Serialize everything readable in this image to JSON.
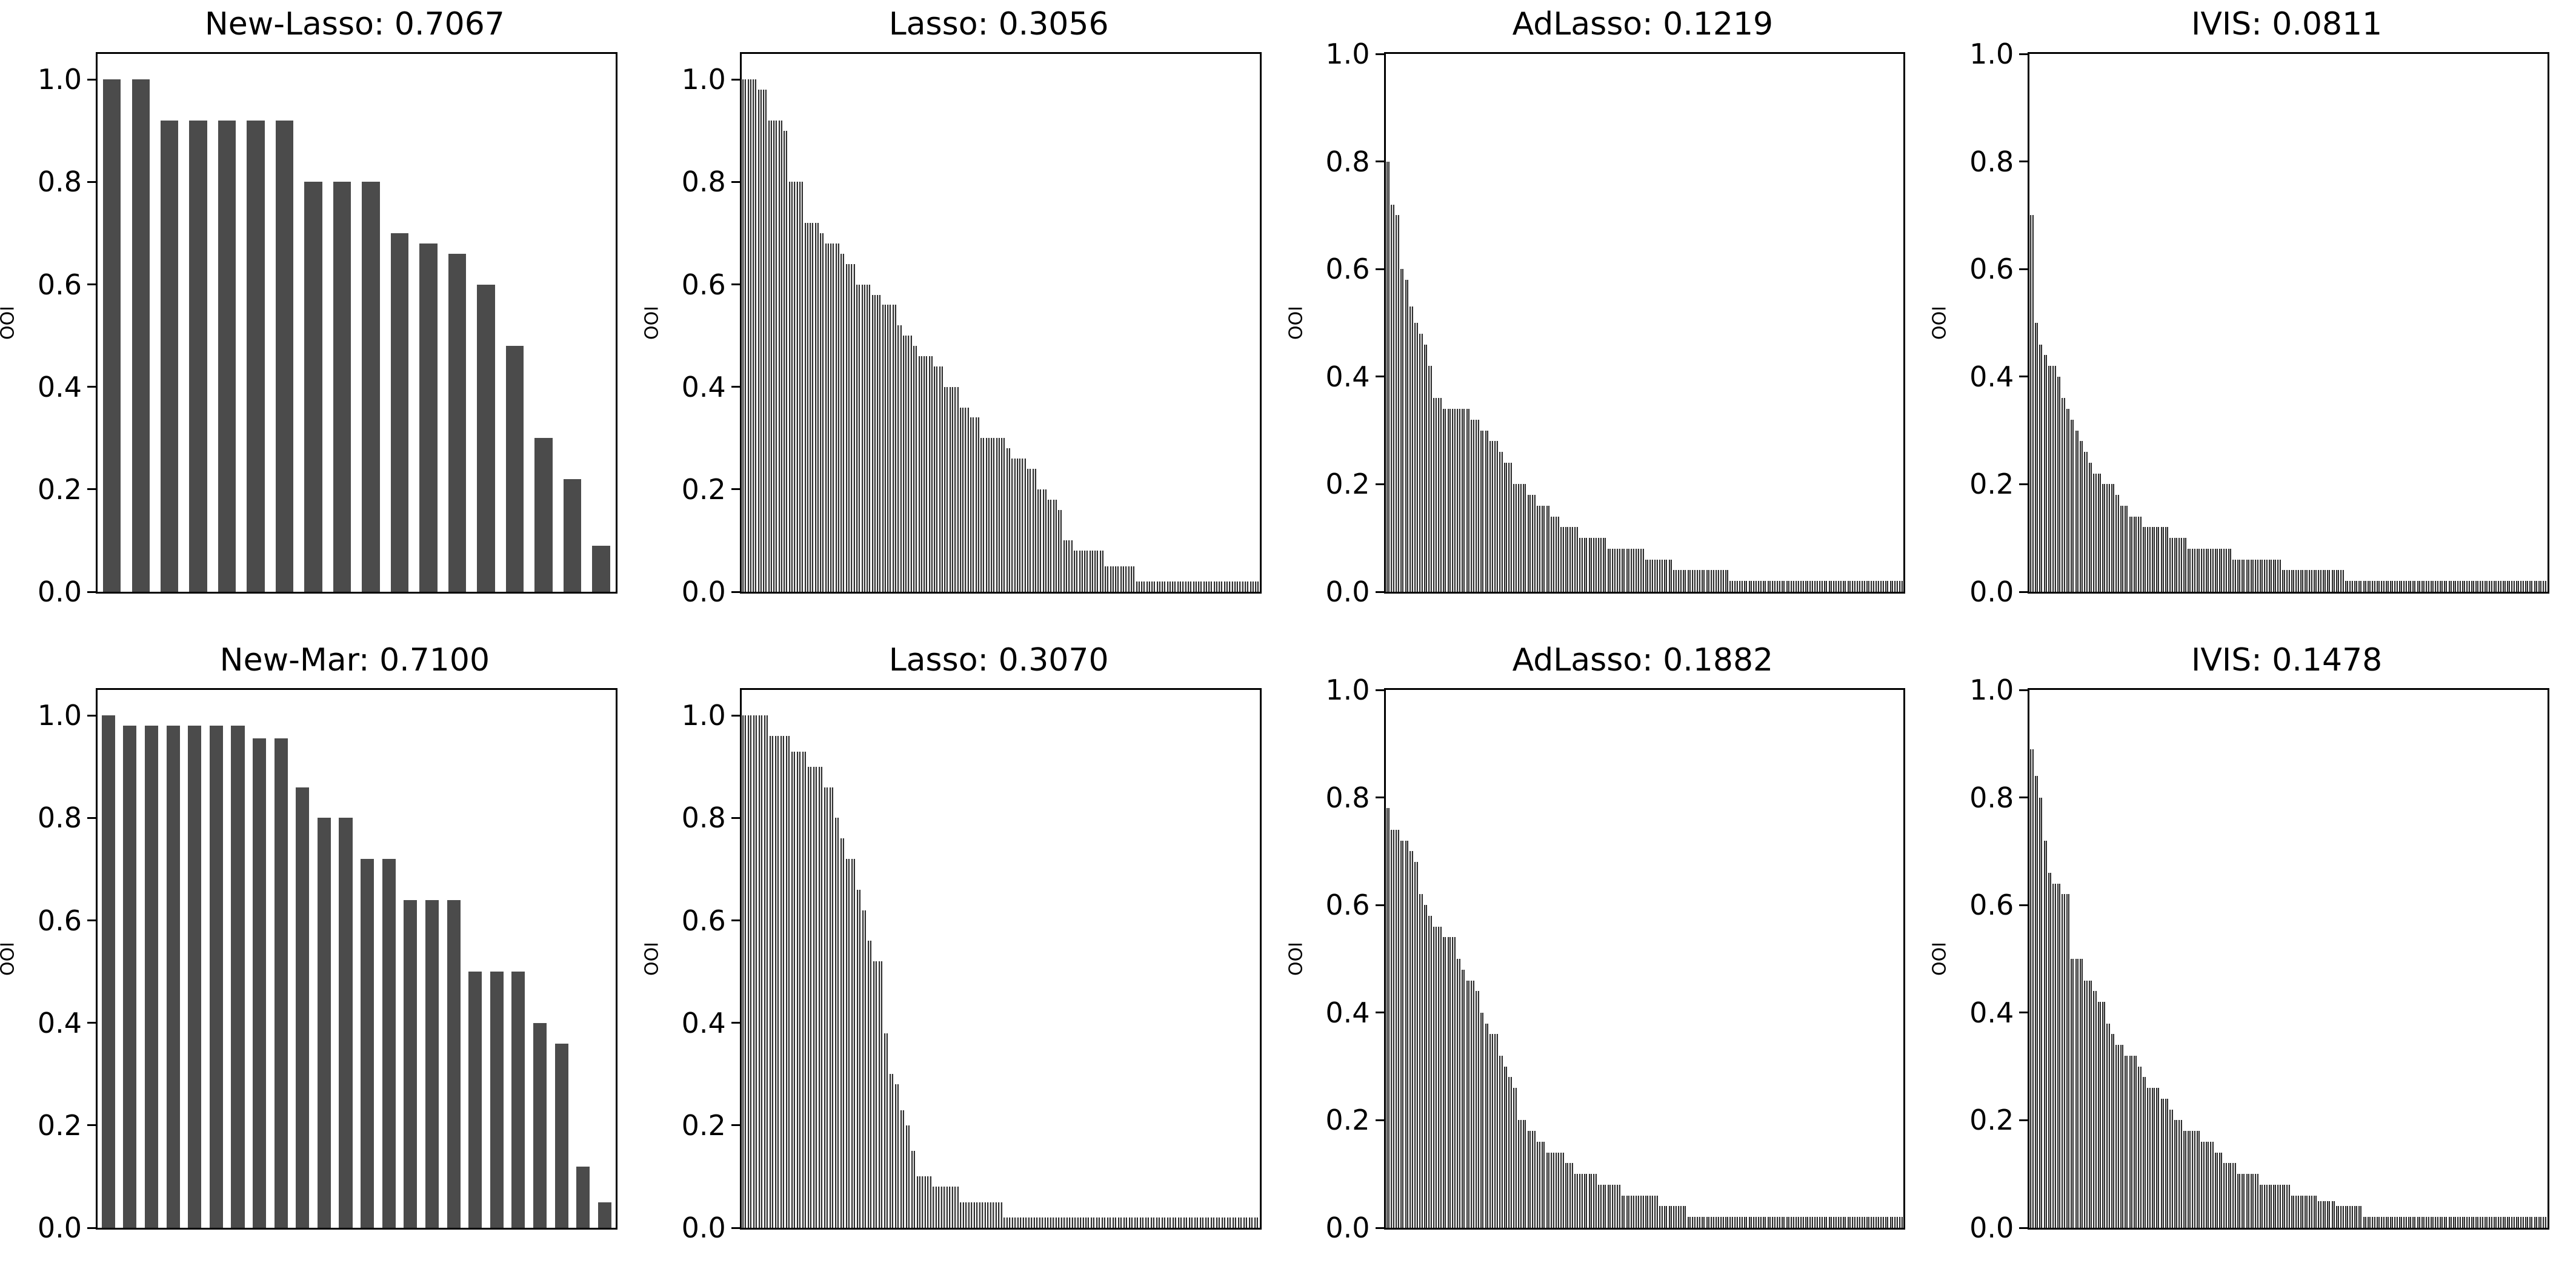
{
  "figure": {
    "background": "#ffffff",
    "axis_color": "#000000",
    "wide_bar_color": "#4b4b4b",
    "thin_bar_fill": "#dcdcdc",
    "thin_bar_edge": "#2d2d2d"
  },
  "axis": {
    "yticks": [
      0.0,
      0.2,
      0.4,
      0.6,
      0.8,
      1.0
    ],
    "ytick_labels": [
      "0.0",
      "0.2",
      "0.4",
      "0.6",
      "0.8",
      "1.0"
    ]
  },
  "chart_data": [
    {
      "type": "bar",
      "title": "New-Lasso: 0.7067",
      "xlabel": "",
      "ylabel": "OOI",
      "ylim": [
        0,
        1.05
      ],
      "bar_style": "wide",
      "legend": "none",
      "grid": false,
      "values": [
        1.0,
        1.0,
        0.92,
        0.92,
        0.92,
        0.92,
        0.92,
        0.8,
        0.8,
        0.8,
        0.7,
        0.68,
        0.66,
        0.6,
        0.48,
        0.3,
        0.22,
        0.09
      ]
    },
    {
      "type": "bar",
      "title": "Lasso: 0.3056",
      "xlabel": "",
      "ylabel": "OOI",
      "ylim": [
        0,
        1.05
      ],
      "bar_style": "thin",
      "legend": "none",
      "grid": false,
      "values": [
        1.0,
        1.0,
        1.0,
        0.98,
        0.98,
        0.92,
        0.92,
        0.92,
        0.9,
        0.8,
        0.8,
        0.8,
        0.72,
        0.72,
        0.72,
        0.7,
        0.68,
        0.68,
        0.68,
        0.66,
        0.64,
        0.64,
        0.6,
        0.6,
        0.6,
        0.58,
        0.58,
        0.56,
        0.56,
        0.56,
        0.52,
        0.5,
        0.5,
        0.48,
        0.46,
        0.46,
        0.46,
        0.44,
        0.44,
        0.4,
        0.4,
        0.4,
        0.36,
        0.36,
        0.34,
        0.34,
        0.3,
        0.3,
        0.3,
        0.3,
        0.3,
        0.28,
        0.26,
        0.26,
        0.26,
        0.24,
        0.24,
        0.2,
        0.2,
        0.18,
        0.18,
        0.16,
        0.1,
        0.1,
        0.08,
        0.08,
        0.08,
        0.08,
        0.08,
        0.08,
        0.05,
        0.05,
        0.05,
        0.05,
        0.05,
        0.05,
        0.02,
        0.02,
        0.02,
        0.02,
        0.02,
        0.02,
        0.02,
        0.02,
        0.02,
        0.02,
        0.02,
        0.02,
        0.02,
        0.02,
        0.02,
        0.02,
        0.02,
        0.02,
        0.02,
        0.02,
        0.02,
        0.02,
        0.02,
        0.02
      ]
    },
    {
      "type": "bar",
      "title": "AdLasso: 0.1219",
      "xlabel": "",
      "ylabel": "OOI",
      "ylim": [
        0,
        1.0
      ],
      "bar_style": "thin",
      "legend": "none",
      "grid": false,
      "values": [
        0.8,
        0.72,
        0.7,
        0.6,
        0.58,
        0.53,
        0.5,
        0.48,
        0.46,
        0.42,
        0.36,
        0.36,
        0.34,
        0.34,
        0.34,
        0.34,
        0.34,
        0.34,
        0.32,
        0.32,
        0.3,
        0.3,
        0.28,
        0.28,
        0.26,
        0.24,
        0.24,
        0.2,
        0.2,
        0.2,
        0.18,
        0.18,
        0.16,
        0.16,
        0.16,
        0.14,
        0.14,
        0.12,
        0.12,
        0.12,
        0.12,
        0.1,
        0.1,
        0.1,
        0.1,
        0.1,
        0.1,
        0.08,
        0.08,
        0.08,
        0.08,
        0.08,
        0.08,
        0.08,
        0.08,
        0.06,
        0.06,
        0.06,
        0.06,
        0.06,
        0.06,
        0.04,
        0.04,
        0.04,
        0.04,
        0.04,
        0.04,
        0.04,
        0.04,
        0.04,
        0.04,
        0.04,
        0.04,
        0.02,
        0.02,
        0.02,
        0.02,
        0.02,
        0.02,
        0.02,
        0.02,
        0.02,
        0.02,
        0.02,
        0.02,
        0.02,
        0.02,
        0.02,
        0.02,
        0.02,
        0.02,
        0.02,
        0.02,
        0.02,
        0.02,
        0.02,
        0.02,
        0.02,
        0.02,
        0.02,
        0.02,
        0.02,
        0.02,
        0.02,
        0.02,
        0.02,
        0.02,
        0.02,
        0.02,
        0.02
      ]
    },
    {
      "type": "bar",
      "title": "IVIS: 0.0811",
      "xlabel": "",
      "ylabel": "OOI",
      "ylim": [
        0,
        1.0
      ],
      "bar_style": "thin",
      "legend": "none",
      "grid": false,
      "values": [
        0.7,
        0.5,
        0.46,
        0.44,
        0.42,
        0.42,
        0.4,
        0.36,
        0.34,
        0.32,
        0.3,
        0.28,
        0.26,
        0.24,
        0.22,
        0.22,
        0.2,
        0.2,
        0.2,
        0.18,
        0.16,
        0.16,
        0.14,
        0.14,
        0.14,
        0.12,
        0.12,
        0.12,
        0.12,
        0.12,
        0.12,
        0.1,
        0.1,
        0.1,
        0.1,
        0.08,
        0.08,
        0.08,
        0.08,
        0.08,
        0.08,
        0.08,
        0.08,
        0.08,
        0.08,
        0.06,
        0.06,
        0.06,
        0.06,
        0.06,
        0.06,
        0.06,
        0.06,
        0.06,
        0.06,
        0.06,
        0.04,
        0.04,
        0.04,
        0.04,
        0.04,
        0.04,
        0.04,
        0.04,
        0.04,
        0.04,
        0.04,
        0.04,
        0.04,
        0.04,
        0.02,
        0.02,
        0.02,
        0.02,
        0.02,
        0.02,
        0.02,
        0.02,
        0.02,
        0.02,
        0.02,
        0.02,
        0.02,
        0.02,
        0.02,
        0.02,
        0.02,
        0.02,
        0.02,
        0.02,
        0.02,
        0.02,
        0.02,
        0.02,
        0.02,
        0.02,
        0.02,
        0.02,
        0.02,
        0.02,
        0.02,
        0.02,
        0.02,
        0.02,
        0.02,
        0.02,
        0.02,
        0.02,
        0.02,
        0.02,
        0.02,
        0.02,
        0.02,
        0.02,
        0.02
      ]
    },
    {
      "type": "bar",
      "title": "New-Mar: 0.7100",
      "xlabel": "",
      "ylabel": "OOI",
      "ylim": [
        0,
        1.05
      ],
      "bar_style": "wide",
      "legend": "none",
      "grid": false,
      "values": [
        1.0,
        0.98,
        0.98,
        0.98,
        0.98,
        0.98,
        0.98,
        0.955,
        0.955,
        0.86,
        0.8,
        0.8,
        0.72,
        0.72,
        0.64,
        0.64,
        0.64,
        0.5,
        0.5,
        0.5,
        0.4,
        0.36,
        0.12,
        0.05
      ]
    },
    {
      "type": "bar",
      "title": "Lasso: 0.3070",
      "xlabel": "",
      "ylabel": "OOI",
      "ylim": [
        0,
        1.05
      ],
      "bar_style": "thin",
      "legend": "none",
      "grid": false,
      "values": [
        1.0,
        1.0,
        1.0,
        1.0,
        1.0,
        0.96,
        0.96,
        0.96,
        0.96,
        0.93,
        0.93,
        0.93,
        0.9,
        0.9,
        0.9,
        0.86,
        0.86,
        0.8,
        0.76,
        0.72,
        0.72,
        0.66,
        0.62,
        0.56,
        0.52,
        0.52,
        0.38,
        0.3,
        0.28,
        0.23,
        0.2,
        0.15,
        0.1,
        0.1,
        0.1,
        0.08,
        0.08,
        0.08,
        0.08,
        0.08,
        0.05,
        0.05,
        0.05,
        0.05,
        0.05,
        0.05,
        0.05,
        0.05,
        0.02,
        0.02,
        0.02,
        0.02,
        0.02,
        0.02,
        0.02,
        0.02,
        0.02,
        0.02,
        0.02,
        0.02,
        0.02,
        0.02,
        0.02,
        0.02,
        0.02,
        0.02,
        0.02,
        0.02,
        0.02,
        0.02,
        0.02,
        0.02,
        0.02,
        0.02,
        0.02,
        0.02,
        0.02,
        0.02,
        0.02,
        0.02,
        0.02,
        0.02,
        0.02,
        0.02,
        0.02,
        0.02,
        0.02,
        0.02,
        0.02,
        0.02,
        0.02,
        0.02,
        0.02,
        0.02,
        0.02
      ]
    },
    {
      "type": "bar",
      "title": "AdLasso: 0.1882",
      "xlabel": "",
      "ylabel": "OOI",
      "ylim": [
        0,
        1.0
      ],
      "bar_style": "thin",
      "legend": "none",
      "grid": false,
      "values": [
        0.78,
        0.74,
        0.74,
        0.72,
        0.72,
        0.7,
        0.68,
        0.62,
        0.6,
        0.58,
        0.56,
        0.56,
        0.54,
        0.54,
        0.54,
        0.5,
        0.48,
        0.46,
        0.46,
        0.44,
        0.4,
        0.38,
        0.36,
        0.36,
        0.32,
        0.3,
        0.28,
        0.26,
        0.2,
        0.2,
        0.18,
        0.18,
        0.16,
        0.16,
        0.14,
        0.14,
        0.14,
        0.14,
        0.12,
        0.12,
        0.1,
        0.1,
        0.1,
        0.1,
        0.1,
        0.08,
        0.08,
        0.08,
        0.08,
        0.08,
        0.06,
        0.06,
        0.06,
        0.06,
        0.06,
        0.06,
        0.06,
        0.06,
        0.04,
        0.04,
        0.04,
        0.04,
        0.04,
        0.04,
        0.02,
        0.02,
        0.02,
        0.02,
        0.02,
        0.02,
        0.02,
        0.02,
        0.02,
        0.02,
        0.02,
        0.02,
        0.02,
        0.02,
        0.02,
        0.02,
        0.02,
        0.02,
        0.02,
        0.02,
        0.02,
        0.02,
        0.02,
        0.02,
        0.02,
        0.02,
        0.02,
        0.02,
        0.02,
        0.02,
        0.02,
        0.02,
        0.02,
        0.02,
        0.02,
        0.02,
        0.02,
        0.02,
        0.02,
        0.02,
        0.02,
        0.02,
        0.02,
        0.02,
        0.02,
        0.02
      ]
    },
    {
      "type": "bar",
      "title": "IVIS: 0.1478",
      "xlabel": "",
      "ylabel": "OOI",
      "ylim": [
        0,
        1.0
      ],
      "bar_style": "thin",
      "legend": "none",
      "grid": false,
      "values": [
        0.89,
        0.84,
        0.8,
        0.72,
        0.66,
        0.64,
        0.64,
        0.62,
        0.62,
        0.5,
        0.5,
        0.5,
        0.46,
        0.46,
        0.44,
        0.42,
        0.42,
        0.38,
        0.36,
        0.34,
        0.34,
        0.32,
        0.32,
        0.32,
        0.3,
        0.28,
        0.26,
        0.26,
        0.26,
        0.24,
        0.24,
        0.22,
        0.2,
        0.2,
        0.18,
        0.18,
        0.18,
        0.18,
        0.16,
        0.16,
        0.16,
        0.14,
        0.14,
        0.12,
        0.12,
        0.12,
        0.1,
        0.1,
        0.1,
        0.1,
        0.1,
        0.08,
        0.08,
        0.08,
        0.08,
        0.08,
        0.08,
        0.08,
        0.06,
        0.06,
        0.06,
        0.06,
        0.06,
        0.06,
        0.05,
        0.05,
        0.05,
        0.05,
        0.04,
        0.04,
        0.04,
        0.04,
        0.04,
        0.04,
        0.02,
        0.02,
        0.02,
        0.02,
        0.02,
        0.02,
        0.02,
        0.02,
        0.02,
        0.02,
        0.02,
        0.02,
        0.02,
        0.02,
        0.02,
        0.02,
        0.02,
        0.02,
        0.02,
        0.02,
        0.02,
        0.02,
        0.02,
        0.02,
        0.02,
        0.02,
        0.02,
        0.02,
        0.02,
        0.02,
        0.02,
        0.02,
        0.02,
        0.02,
        0.02,
        0.02,
        0.02,
        0.02,
        0.02,
        0.02,
        0.02
      ]
    }
  ]
}
